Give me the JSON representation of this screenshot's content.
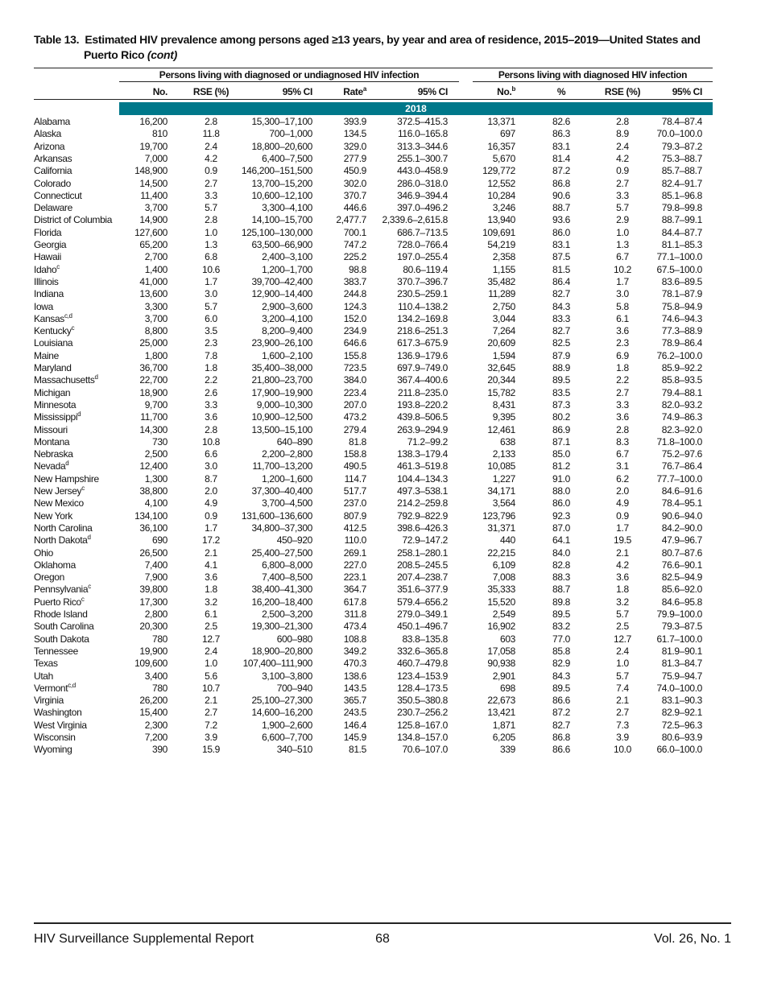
{
  "header": {
    "label": "Table 13.",
    "title": "Estimated HIV prevalence among persons aged ≥13 years, by year and area of residence, 2015–2019—United States and Puerto Rico",
    "cont": "(cont)"
  },
  "table": {
    "groups": [
      "Persons living with diagnosed or undiagnosed HIV infection",
      "Persons living with diagnosed HIV infection"
    ],
    "columns": [
      {
        "label": "No."
      },
      {
        "label": "RSE (%)"
      },
      {
        "label": "95% CI"
      },
      {
        "label": "Rate",
        "note": "a"
      },
      {
        "label": "95% CI"
      },
      {
        "label": "No.",
        "note": "b"
      },
      {
        "label": "%"
      },
      {
        "label": "RSE (%)"
      },
      {
        "label": "95% CI"
      }
    ],
    "year": "2018",
    "area_notes": {
      "12": "c",
      "16": "c,d",
      "17": "c",
      "21": "d",
      "24": "d",
      "28": "d",
      "30": "c",
      "34": "d",
      "38": "c",
      "39": "c",
      "46": "c,d"
    },
    "rows": [
      [
        "Alabama",
        "16,200",
        "2.8",
        "15,300–17,100",
        "393.9",
        "372.5–415.3",
        "13,371",
        "82.6",
        "2.8",
        "78.4–87.4"
      ],
      [
        "Alaska",
        "810",
        "11.8",
        "700–1,000",
        "134.5",
        "116.0–165.8",
        "697",
        "86.3",
        "8.9",
        "70.0–100.0"
      ],
      [
        "Arizona",
        "19,700",
        "2.4",
        "18,800–20,600",
        "329.0",
        "313.3–344.6",
        "16,357",
        "83.1",
        "2.4",
        "79.3–87.2"
      ],
      [
        "Arkansas",
        "7,000",
        "4.2",
        "6,400–7,500",
        "277.9",
        "255.1–300.7",
        "5,670",
        "81.4",
        "4.2",
        "75.3–88.7"
      ],
      [
        "California",
        "148,900",
        "0.9",
        "146,200–151,500",
        "450.9",
        "443.0–458.9",
        "129,772",
        "87.2",
        "0.9",
        "85.7–88.7"
      ],
      [
        "Colorado",
        "14,500",
        "2.7",
        "13,700–15,200",
        "302.0",
        "286.0–318.0",
        "12,552",
        "86.8",
        "2.7",
        "82.4–91.7"
      ],
      [
        "Connecticut",
        "11,400",
        "3.3",
        "10,600–12,100",
        "370.7",
        "346.9–394.4",
        "10,284",
        "90.6",
        "3.3",
        "85.1–96.8"
      ],
      [
        "Delaware",
        "3,700",
        "5.7",
        "3,300–4,100",
        "446.6",
        "397.0–496.2",
        "3,246",
        "88.7",
        "5.7",
        "79.8–99.8"
      ],
      [
        "District of Columbia",
        "14,900",
        "2.8",
        "14,100–15,700",
        "2,477.7",
        "2,339.6–2,615.8",
        "13,940",
        "93.6",
        "2.9",
        "88.7–99.1"
      ],
      [
        "Florida",
        "127,600",
        "1.0",
        "125,100–130,000",
        "700.1",
        "686.7–713.5",
        "109,691",
        "86.0",
        "1.0",
        "84.4–87.7"
      ],
      [
        "Georgia",
        "65,200",
        "1.3",
        "63,500–66,900",
        "747.2",
        "728.0–766.4",
        "54,219",
        "83.1",
        "1.3",
        "81.1–85.3"
      ],
      [
        "Hawaii",
        "2,700",
        "6.8",
        "2,400–3,100",
        "225.2",
        "197.0–255.4",
        "2,358",
        "87.5",
        "6.7",
        "77.1–100.0"
      ],
      [
        "Idaho",
        "1,400",
        "10.6",
        "1,200–1,700",
        "98.8",
        "80.6–119.4",
        "1,155",
        "81.5",
        "10.2",
        "67.5–100.0"
      ],
      [
        "Illinois",
        "41,000",
        "1.7",
        "39,700–42,400",
        "383.7",
        "370.7–396.7",
        "35,482",
        "86.4",
        "1.7",
        "83.6–89.5"
      ],
      [
        "Indiana",
        "13,600",
        "3.0",
        "12,900–14,400",
        "244.8",
        "230.5–259.1",
        "11,289",
        "82.7",
        "3.0",
        "78.1–87.9"
      ],
      [
        "Iowa",
        "3,300",
        "5.7",
        "2,900–3,600",
        "124.3",
        "110.4–138.2",
        "2,750",
        "84.3",
        "5.8",
        "75.8–94.9"
      ],
      [
        "Kansas",
        "3,700",
        "6.0",
        "3,200–4,100",
        "152.0",
        "134.2–169.8",
        "3,044",
        "83.3",
        "6.1",
        "74.6–94.3"
      ],
      [
        "Kentucky",
        "8,800",
        "3.5",
        "8,200–9,400",
        "234.9",
        "218.6–251.3",
        "7,264",
        "82.7",
        "3.6",
        "77.3–88.9"
      ],
      [
        "Louisiana",
        "25,000",
        "2.3",
        "23,900–26,100",
        "646.6",
        "617.3–675.9",
        "20,609",
        "82.5",
        "2.3",
        "78.9–86.4"
      ],
      [
        "Maine",
        "1,800",
        "7.8",
        "1,600–2,100",
        "155.8",
        "136.9–179.6",
        "1,594",
        "87.9",
        "6.9",
        "76.2–100.0"
      ],
      [
        "Maryland",
        "36,700",
        "1.8",
        "35,400–38,000",
        "723.5",
        "697.9–749.0",
        "32,645",
        "88.9",
        "1.8",
        "85.9–92.2"
      ],
      [
        "Massachusetts",
        "22,700",
        "2.2",
        "21,800–23,700",
        "384.0",
        "367.4–400.6",
        "20,344",
        "89.5",
        "2.2",
        "85.8–93.5"
      ],
      [
        "Michigan",
        "18,900",
        "2.6",
        "17,900–19,900",
        "223.4",
        "211.8–235.0",
        "15,782",
        "83.5",
        "2.7",
        "79.4–88.1"
      ],
      [
        "Minnesota",
        "9,700",
        "3.3",
        "9,000–10,300",
        "207.0",
        "193.8–220.2",
        "8,431",
        "87.3",
        "3.3",
        "82.0–93.2"
      ],
      [
        "Mississippi",
        "11,700",
        "3.6",
        "10,900–12,500",
        "473.2",
        "439.8–506.5",
        "9,395",
        "80.2",
        "3.6",
        "74.9–86.3"
      ],
      [
        "Missouri",
        "14,300",
        "2.8",
        "13,500–15,100",
        "279.4",
        "263.9–294.9",
        "12,461",
        "86.9",
        "2.8",
        "82.3–92.0"
      ],
      [
        "Montana",
        "730",
        "10.8",
        "640–890",
        "81.8",
        "71.2–99.2",
        "638",
        "87.1",
        "8.3",
        "71.8–100.0"
      ],
      [
        "Nebraska",
        "2,500",
        "6.6",
        "2,200–2,800",
        "158.8",
        "138.3–179.4",
        "2,133",
        "85.0",
        "6.7",
        "75.2–97.6"
      ],
      [
        "Nevada",
        "12,400",
        "3.0",
        "11,700–13,200",
        "490.5",
        "461.3–519.8",
        "10,085",
        "81.2",
        "3.1",
        "76.7–86.4"
      ],
      [
        "New Hampshire",
        "1,300",
        "8.7",
        "1,200–1,600",
        "114.7",
        "104.4–134.3",
        "1,227",
        "91.0",
        "6.2",
        "77.7–100.0"
      ],
      [
        "New Jersey",
        "38,800",
        "2.0",
        "37,300–40,400",
        "517.7",
        "497.3–538.1",
        "34,171",
        "88.0",
        "2.0",
        "84.6–91.6"
      ],
      [
        "New Mexico",
        "4,100",
        "4.9",
        "3,700–4,500",
        "237.0",
        "214.2–259.8",
        "3,564",
        "86.0",
        "4.9",
        "78.4–95.1"
      ],
      [
        "New York",
        "134,100",
        "0.9",
        "131,600–136,600",
        "807.9",
        "792.9–822.9",
        "123,796",
        "92.3",
        "0.9",
        "90.6–94.0"
      ],
      [
        "North Carolina",
        "36,100",
        "1.7",
        "34,800–37,300",
        "412.5",
        "398.6–426.3",
        "31,371",
        "87.0",
        "1.7",
        "84.2–90.0"
      ],
      [
        "North Dakota",
        "690",
        "17.2",
        "450–920",
        "110.0",
        "72.9–147.2",
        "440",
        "64.1",
        "19.5",
        "47.9–96.7"
      ],
      [
        "Ohio",
        "26,500",
        "2.1",
        "25,400–27,500",
        "269.1",
        "258.1–280.1",
        "22,215",
        "84.0",
        "2.1",
        "80.7–87.6"
      ],
      [
        "Oklahoma",
        "7,400",
        "4.1",
        "6,800–8,000",
        "227.0",
        "208.5–245.5",
        "6,109",
        "82.8",
        "4.2",
        "76.6–90.1"
      ],
      [
        "Oregon",
        "7,900",
        "3.6",
        "7,400–8,500",
        "223.1",
        "207.4–238.7",
        "7,008",
        "88.3",
        "3.6",
        "82.5–94.9"
      ],
      [
        "Pennsylvania",
        "39,800",
        "1.8",
        "38,400–41,300",
        "364.7",
        "351.6–377.9",
        "35,333",
        "88.7",
        "1.8",
        "85.6–92.0"
      ],
      [
        "Puerto Rico",
        "17,300",
        "3.2",
        "16,200–18,400",
        "617.8",
        "579.4–656.2",
        "15,520",
        "89.8",
        "3.2",
        "84.6–95.8"
      ],
      [
        "Rhode Island",
        "2,800",
        "6.1",
        "2,500–3,200",
        "311.8",
        "279.0–349.1",
        "2,549",
        "89.5",
        "5.7",
        "79.9–100.0"
      ],
      [
        "South Carolina",
        "20,300",
        "2.5",
        "19,300–21,300",
        "473.4",
        "450.1–496.7",
        "16,902",
        "83.2",
        "2.5",
        "79.3–87.5"
      ],
      [
        "South Dakota",
        "780",
        "12.7",
        "600–980",
        "108.8",
        "83.8–135.8",
        "603",
        "77.0",
        "12.7",
        "61.7–100.0"
      ],
      [
        "Tennessee",
        "19,900",
        "2.4",
        "18,900–20,800",
        "349.2",
        "332.6–365.8",
        "17,058",
        "85.8",
        "2.4",
        "81.9–90.1"
      ],
      [
        "Texas",
        "109,600",
        "1.0",
        "107,400–111,900",
        "470.3",
        "460.7–479.8",
        "90,938",
        "82.9",
        "1.0",
        "81.3–84.7"
      ],
      [
        "Utah",
        "3,400",
        "5.6",
        "3,100–3,800",
        "138.6",
        "123.4–153.9",
        "2,901",
        "84.3",
        "5.7",
        "75.9–94.7"
      ],
      [
        "Vermont",
        "780",
        "10.7",
        "700–940",
        "143.5",
        "128.4–173.5",
        "698",
        "89.5",
        "7.4",
        "74.0–100.0"
      ],
      [
        "Virginia",
        "26,200",
        "2.1",
        "25,100–27,300",
        "365.7",
        "350.5–380.8",
        "22,673",
        "86.6",
        "2.1",
        "83.1–90.3"
      ],
      [
        "Washington",
        "15,400",
        "2.7",
        "14,600–16,200",
        "243.5",
        "230.7–256.2",
        "13,421",
        "87.2",
        "2.7",
        "82.9–92.1"
      ],
      [
        "West Virginia",
        "2,300",
        "7.2",
        "1,900–2,600",
        "146.4",
        "125.8–167.0",
        "1,871",
        "82.7",
        "7.3",
        "72.5–96.3"
      ],
      [
        "Wisconsin",
        "7,200",
        "3.9",
        "6,600–7,700",
        "145.9",
        "134.8–157.0",
        "6,205",
        "86.8",
        "3.9",
        "80.6–93.9"
      ],
      [
        "Wyoming",
        "390",
        "15.9",
        "340–510",
        "81.5",
        "70.6–107.0",
        "339",
        "86.6",
        "10.0",
        "66.0–100.0"
      ]
    ]
  },
  "footer": {
    "left": "HIV Surveillance Supplemental Report",
    "center": "68",
    "right": "Vol. 26, No. 1"
  }
}
